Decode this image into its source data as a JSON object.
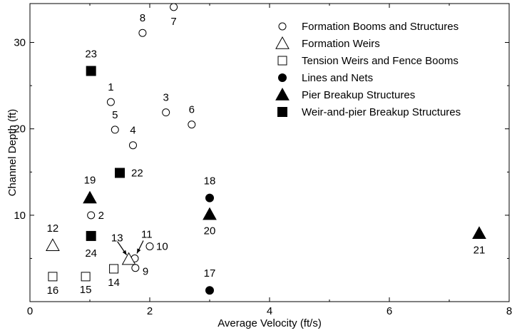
{
  "chart_data": {
    "type": "scatter",
    "title": "",
    "xlabel": "Average Velocity (ft/s)",
    "ylabel": "Channel Depth  (ft)",
    "xlim": [
      0,
      8
    ],
    "ylim": [
      0,
      34.5
    ],
    "x_ticks": [
      0,
      2,
      4,
      6,
      8
    ],
    "y_ticks": [
      10,
      20,
      30
    ],
    "grid": false,
    "legend_position": "top-right",
    "series": [
      {
        "name": "Formation Booms and Structures",
        "marker": "circle-open",
        "points": [
          {
            "id": "1",
            "x": 1.35,
            "y": 23.1
          },
          {
            "id": "2",
            "x": 1.02,
            "y": 10.0
          },
          {
            "id": "3",
            "x": 2.27,
            "y": 21.9
          },
          {
            "id": "4",
            "x": 1.72,
            "y": 18.1
          },
          {
            "id": "5",
            "x": 1.42,
            "y": 19.9
          },
          {
            "id": "6",
            "x": 2.7,
            "y": 20.5
          },
          {
            "id": "7",
            "x": 2.4,
            "y": 34.1
          },
          {
            "id": "8",
            "x": 1.88,
            "y": 31.1
          },
          {
            "id": "9",
            "x": 1.76,
            "y": 3.9
          },
          {
            "id": "10",
            "x": 2.0,
            "y": 6.4
          },
          {
            "id": "11",
            "x": 1.75,
            "y": 5.0
          }
        ]
      },
      {
        "name": "Formation Weirs",
        "marker": "triangle-open",
        "points": [
          {
            "id": "12",
            "x": 0.38,
            "y": 6.5
          },
          {
            "id": "13",
            "x": 1.65,
            "y": 4.9
          }
        ]
      },
      {
        "name": "Tension Weirs and Fence Booms",
        "marker": "square-open",
        "points": [
          {
            "id": "14",
            "x": 1.4,
            "y": 3.8
          },
          {
            "id": "15",
            "x": 0.93,
            "y": 2.9
          },
          {
            "id": "16",
            "x": 0.38,
            "y": 2.9
          }
        ]
      },
      {
        "name": "Lines and Nets",
        "marker": "circle-filled",
        "points": [
          {
            "id": "17",
            "x": 3.0,
            "y": 1.3
          },
          {
            "id": "18",
            "x": 3.0,
            "y": 12.0
          }
        ]
      },
      {
        "name": "Pier Breakup Structures",
        "marker": "triangle-filled",
        "points": [
          {
            "id": "19",
            "x": 1.0,
            "y": 12.0
          },
          {
            "id": "20",
            "x": 3.0,
            "y": 10.1
          },
          {
            "id": "21",
            "x": 7.5,
            "y": 7.9
          }
        ]
      },
      {
        "name": "Weir-and-pier Breakup Structures",
        "marker": "square-filled",
        "points": [
          {
            "id": "22",
            "x": 1.5,
            "y": 14.9
          },
          {
            "id": "23",
            "x": 1.02,
            "y": 26.7
          },
          {
            "id": "24",
            "x": 1.02,
            "y": 7.6
          }
        ]
      }
    ]
  }
}
